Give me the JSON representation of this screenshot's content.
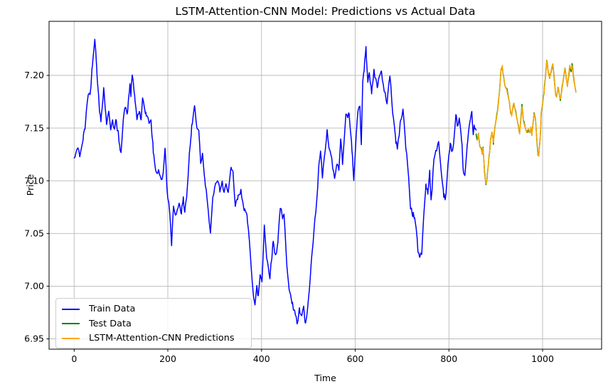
{
  "chart_data": {
    "type": "line",
    "title": "LSTM-Attention-CNN Model: Predictions vs Actual Data",
    "xlabel": "Time",
    "ylabel": "Price",
    "xlim": [
      -53.6,
      1126
    ],
    "ylim": [
      6.9402,
      7.2513
    ],
    "x_ticks": [
      0,
      200,
      400,
      600,
      800,
      1000
    ],
    "y_ticks": [
      "6.95",
      "7.00",
      "7.05",
      "7.10",
      "7.15",
      "7.20"
    ],
    "grid": true,
    "legend_position": "lower left",
    "series": [
      {
        "name": "Train Data",
        "color": "#0000ff",
        "anchors": [
          [
            0,
            7.121
          ],
          [
            4,
            7.125
          ],
          [
            8,
            7.133
          ],
          [
            12,
            7.124
          ],
          [
            16,
            7.13
          ],
          [
            19,
            7.14
          ],
          [
            23,
            7.15
          ],
          [
            26,
            7.166
          ],
          [
            31,
            7.185
          ],
          [
            34,
            7.18
          ],
          [
            39,
            7.212
          ],
          [
            44,
            7.236
          ],
          [
            49,
            7.201
          ],
          [
            54,
            7.166
          ],
          [
            57,
            7.157
          ],
          [
            63,
            7.188
          ],
          [
            69,
            7.155
          ],
          [
            74,
            7.164
          ],
          [
            78,
            7.15
          ],
          [
            82,
            7.159
          ],
          [
            86,
            7.148
          ],
          [
            89,
            7.157
          ],
          [
            94,
            7.145
          ],
          [
            97,
            7.132
          ],
          [
            100,
            7.129
          ],
          [
            105,
            7.159
          ],
          [
            110,
            7.172
          ],
          [
            113,
            7.161
          ],
          [
            119,
            7.192
          ],
          [
            121,
            7.182
          ],
          [
            124,
            7.2
          ],
          [
            129,
            7.181
          ],
          [
            134,
            7.159
          ],
          [
            139,
            7.166
          ],
          [
            143,
            7.155
          ],
          [
            146,
            7.179
          ],
          [
            153,
            7.164
          ],
          [
            158,
            7.157
          ],
          [
            164,
            7.156
          ],
          [
            169,
            7.128
          ],
          [
            172,
            7.115
          ],
          [
            176,
            7.108
          ],
          [
            181,
            7.11
          ],
          [
            186,
            7.099
          ],
          [
            190,
            7.106
          ],
          [
            194,
            7.133
          ],
          [
            198,
            7.094
          ],
          [
            203,
            7.074
          ],
          [
            208,
            7.04
          ],
          [
            212,
            7.076
          ],
          [
            218,
            7.067
          ],
          [
            224,
            7.08
          ],
          [
            229,
            7.07
          ],
          [
            233,
            7.082
          ],
          [
            236,
            7.072
          ],
          [
            240,
            7.085
          ],
          [
            243,
            7.103
          ],
          [
            246,
            7.125
          ],
          [
            251,
            7.151
          ],
          [
            257,
            7.171
          ],
          [
            262,
            7.151
          ],
          [
            266,
            7.149
          ],
          [
            270,
            7.118
          ],
          [
            274,
            7.125
          ],
          [
            279,
            7.102
          ],
          [
            284,
            7.083
          ],
          [
            291,
            7.048
          ],
          [
            295,
            7.08
          ],
          [
            300,
            7.092
          ],
          [
            306,
            7.102
          ],
          [
            311,
            7.091
          ],
          [
            316,
            7.097
          ],
          [
            320,
            7.087
          ],
          [
            325,
            7.098
          ],
          [
            329,
            7.089
          ],
          [
            335,
            7.111
          ],
          [
            339,
            7.107
          ],
          [
            344,
            7.076
          ],
          [
            349,
            7.083
          ],
          [
            356,
            7.09
          ],
          [
            363,
            7.074
          ],
          [
            369,
            7.065
          ],
          [
            374,
            7.045
          ],
          [
            378,
            7.019
          ],
          [
            383,
            6.99
          ],
          [
            386,
            6.981
          ],
          [
            390,
            6.999
          ],
          [
            393,
            6.99
          ],
          [
            397,
            7.011
          ],
          [
            401,
            7.005
          ],
          [
            406,
            7.058
          ],
          [
            411,
            7.026
          ],
          [
            415,
            7.018
          ],
          [
            418,
            7.009
          ],
          [
            425,
            7.043
          ],
          [
            430,
            7.028
          ],
          [
            435,
            7.043
          ],
          [
            440,
            7.076
          ],
          [
            445,
            7.063
          ],
          [
            448,
            7.068
          ],
          [
            454,
            7.021
          ],
          [
            459,
            6.999
          ],
          [
            465,
            6.983
          ],
          [
            471,
            6.977
          ],
          [
            476,
            6.964
          ],
          [
            481,
            6.977
          ],
          [
            486,
            6.97
          ],
          [
            490,
            6.98
          ],
          [
            493,
            6.964
          ],
          [
            497,
            6.972
          ],
          [
            502,
            6.996
          ],
          [
            507,
            7.025
          ],
          [
            513,
            7.058
          ],
          [
            518,
            7.08
          ],
          [
            523,
            7.118
          ],
          [
            526,
            7.128
          ],
          [
            530,
            7.102
          ],
          [
            536,
            7.131
          ],
          [
            540,
            7.146
          ],
          [
            545,
            7.129
          ],
          [
            550,
            7.12
          ],
          [
            556,
            7.1
          ],
          [
            561,
            7.118
          ],
          [
            565,
            7.109
          ],
          [
            569,
            7.139
          ],
          [
            573,
            7.118
          ],
          [
            580,
            7.164
          ],
          [
            584,
            7.158
          ],
          [
            587,
            7.166
          ],
          [
            593,
            7.13
          ],
          [
            597,
            7.098
          ],
          [
            602,
            7.144
          ],
          [
            606,
            7.168
          ],
          [
            610,
            7.172
          ],
          [
            613,
            7.133
          ],
          [
            616,
            7.194
          ],
          [
            619,
            7.206
          ],
          [
            623,
            7.225
          ],
          [
            627,
            7.196
          ],
          [
            630,
            7.204
          ],
          [
            635,
            7.182
          ],
          [
            640,
            7.205
          ],
          [
            647,
            7.189
          ],
          [
            655,
            7.206
          ],
          [
            661,
            7.186
          ],
          [
            668,
            7.175
          ],
          [
            674,
            7.201
          ],
          [
            680,
            7.166
          ],
          [
            687,
            7.137
          ],
          [
            690,
            7.13
          ],
          [
            697,
            7.157
          ],
          [
            702,
            7.169
          ],
          [
            708,
            7.132
          ],
          [
            713,
            7.11
          ],
          [
            718,
            7.075
          ],
          [
            723,
            7.068
          ],
          [
            727,
            7.065
          ],
          [
            731,
            7.051
          ],
          [
            734,
            7.034
          ],
          [
            737,
            7.026
          ],
          [
            740,
            7.033
          ],
          [
            742,
            7.03
          ],
          [
            746,
            7.065
          ],
          [
            751,
            7.097
          ],
          [
            755,
            7.088
          ],
          [
            759,
            7.11
          ],
          [
            762,
            7.081
          ],
          [
            768,
            7.119
          ],
          [
            774,
            7.131
          ],
          [
            778,
            7.137
          ],
          [
            784,
            7.107
          ],
          [
            789,
            7.087
          ],
          [
            793,
            7.084
          ],
          [
            798,
            7.114
          ],
          [
            803,
            7.135
          ],
          [
            806,
            7.128
          ],
          [
            810,
            7.135
          ],
          [
            815,
            7.163
          ],
          [
            819,
            7.151
          ],
          [
            822,
            7.157
          ],
          [
            827,
            7.141
          ],
          [
            831,
            7.108
          ],
          [
            834,
            7.104
          ],
          [
            839,
            7.132
          ],
          [
            843,
            7.148
          ],
          [
            846,
            7.157
          ],
          [
            849,
            7.164
          ],
          [
            852,
            7.146
          ],
          [
            855,
            7.152
          ],
          [
            858,
            7.146
          ]
        ]
      },
      {
        "name": "Test Data",
        "color": "#008000",
        "anchors": [
          [
            858,
            7.146
          ],
          [
            861,
            7.138
          ],
          [
            863,
            7.145
          ],
          [
            866,
            7.133
          ],
          [
            869,
            7.131
          ],
          [
            871,
            7.126
          ],
          [
            873,
            7.131
          ],
          [
            876,
            7.11
          ],
          [
            879,
            7.097
          ],
          [
            881,
            7.1
          ],
          [
            884,
            7.115
          ],
          [
            887,
            7.128
          ],
          [
            889,
            7.14
          ],
          [
            892,
            7.146
          ],
          [
            895,
            7.136
          ],
          [
            898,
            7.15
          ],
          [
            901,
            7.158
          ],
          [
            905,
            7.17
          ],
          [
            908,
            7.186
          ],
          [
            911,
            7.205
          ],
          [
            914,
            7.209
          ],
          [
            917,
            7.198
          ],
          [
            920,
            7.19
          ],
          [
            924,
            7.186
          ],
          [
            927,
            7.179
          ],
          [
            929,
            7.176
          ],
          [
            932,
            7.165
          ],
          [
            934,
            7.162
          ],
          [
            937,
            7.171
          ],
          [
            939,
            7.174
          ],
          [
            943,
            7.164
          ],
          [
            947,
            7.154
          ],
          [
            951,
            7.145
          ],
          [
            954,
            7.16
          ],
          [
            956,
            7.171
          ],
          [
            959,
            7.157
          ],
          [
            962,
            7.151
          ],
          [
            966,
            7.146
          ],
          [
            970,
            7.149
          ],
          [
            973,
            7.145
          ],
          [
            975,
            7.15
          ],
          [
            977,
            7.143
          ],
          [
            980,
            7.156
          ],
          [
            982,
            7.164
          ],
          [
            985,
            7.158
          ],
          [
            987,
            7.145
          ],
          [
            990,
            7.126
          ],
          [
            992,
            7.124
          ],
          [
            995,
            7.141
          ],
          [
            997,
            7.164
          ],
          [
            1000,
            7.172
          ],
          [
            1003,
            7.183
          ],
          [
            1006,
            7.198
          ],
          [
            1009,
            7.214
          ],
          [
            1012,
            7.204
          ],
          [
            1015,
            7.197
          ],
          [
            1018,
            7.204
          ],
          [
            1022,
            7.211
          ],
          [
            1025,
            7.195
          ],
          [
            1028,
            7.181
          ],
          [
            1030,
            7.179
          ],
          [
            1033,
            7.188
          ],
          [
            1036,
            7.181
          ],
          [
            1038,
            7.177
          ],
          [
            1041,
            7.186
          ],
          [
            1044,
            7.196
          ],
          [
            1048,
            7.207
          ],
          [
            1051,
            7.197
          ],
          [
            1053,
            7.19
          ],
          [
            1056,
            7.201
          ],
          [
            1058,
            7.209
          ],
          [
            1061,
            7.205
          ],
          [
            1063,
            7.21
          ],
          [
            1066,
            7.2
          ],
          [
            1069,
            7.19
          ],
          [
            1071,
            7.184
          ]
        ]
      },
      {
        "name": "LSTM-Attention-CNN Predictions",
        "color": "#ffa500",
        "anchors_ref": 1,
        "x_start": 860
      }
    ]
  },
  "legend": {
    "items": [
      {
        "label": "Train Data"
      },
      {
        "label": "Test Data"
      },
      {
        "label": "LSTM-Attention-CNN Predictions"
      }
    ]
  }
}
